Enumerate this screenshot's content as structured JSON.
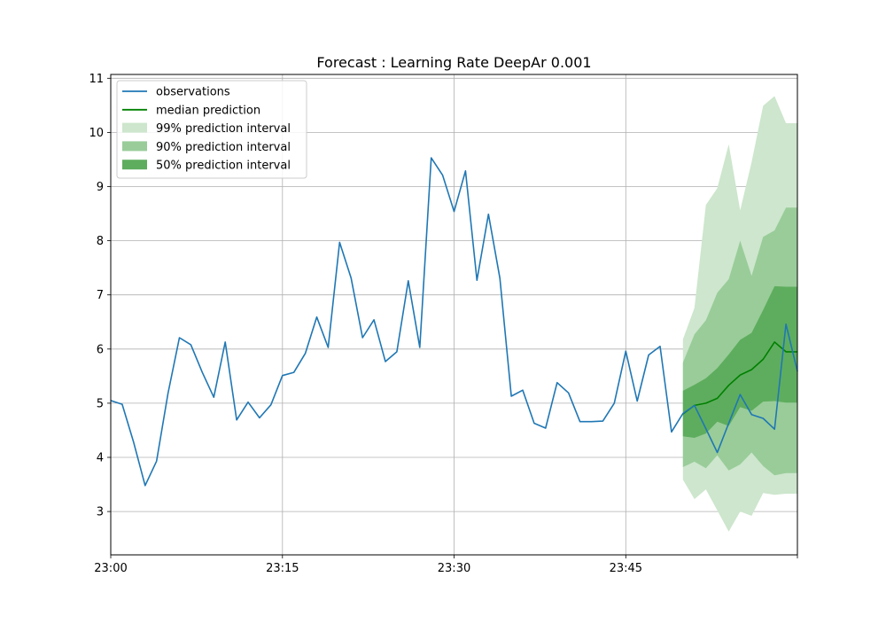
{
  "chart_data": {
    "type": "line",
    "title": "Forecast : Learning Rate DeepAr 0.001",
    "xlabel": "",
    "ylabel": "",
    "x_unit_minutes": 1,
    "xlim": [
      "23:00",
      "00:00"
    ],
    "ylim": [
      2.2,
      11.07
    ],
    "grid": true,
    "legend_position": "top-left",
    "x_ticks": [
      {
        "value": "23:00",
        "label": "23:00"
      },
      {
        "value": "23:15",
        "label": "23:15"
      },
      {
        "value": "23:30",
        "label": "23:30"
      },
      {
        "value": "23:45",
        "label": "23:45"
      },
      {
        "value": "00:00",
        "label": ""
      }
    ],
    "y_ticks": [
      3,
      4,
      5,
      6,
      7,
      8,
      9,
      10,
      11
    ],
    "legend": [
      {
        "label": "observations",
        "kind": "line",
        "color": "#1f77b4"
      },
      {
        "label": "median prediction",
        "kind": "line",
        "color": "#008000"
      },
      {
        "label": "99% prediction interval",
        "kind": "band",
        "color": "#cde6cd"
      },
      {
        "label": "90% prediction interval",
        "kind": "band",
        "color": "#99cc99"
      },
      {
        "label": "50% prediction interval",
        "kind": "band",
        "color": "#5ead5e"
      }
    ],
    "observations": {
      "name": "observations",
      "color": "#1f77b4",
      "x": [
        "23:00",
        "23:01",
        "23:02",
        "23:03",
        "23:04",
        "23:05",
        "23:06",
        "23:07",
        "23:08",
        "23:09",
        "23:10",
        "23:11",
        "23:12",
        "23:13",
        "23:14",
        "23:15",
        "23:16",
        "23:17",
        "23:18",
        "23:19",
        "23:20",
        "23:21",
        "23:22",
        "23:23",
        "23:24",
        "23:25",
        "23:26",
        "23:27",
        "23:28",
        "23:29",
        "23:30",
        "23:31",
        "23:32",
        "23:33",
        "23:34",
        "23:35",
        "23:36",
        "23:37",
        "23:38",
        "23:39",
        "23:40",
        "23:41",
        "23:42",
        "23:43",
        "23:44",
        "23:45",
        "23:46",
        "23:47",
        "23:48",
        "23:49",
        "23:50",
        "23:51",
        "23:52",
        "23:53",
        "23:54",
        "23:55",
        "23:56",
        "23:57",
        "23:58",
        "23:59",
        "00:00"
      ],
      "values": [
        5.05,
        4.98,
        4.28,
        3.48,
        3.93,
        5.18,
        6.21,
        6.08,
        5.57,
        5.11,
        6.13,
        4.69,
        5.02,
        4.73,
        4.97,
        5.51,
        5.57,
        5.92,
        6.59,
        6.03,
        7.97,
        7.31,
        6.21,
        6.54,
        5.77,
        5.95,
        7.26,
        6.03,
        9.53,
        9.21,
        8.54,
        9.29,
        7.27,
        8.49,
        7.31,
        5.13,
        5.24,
        4.63,
        4.54,
        5.38,
        5.19,
        4.66,
        4.66,
        4.67,
        5.0,
        5.96,
        5.04,
        5.89,
        6.05,
        4.47,
        4.81,
        4.96,
        4.53,
        4.09,
        4.63,
        5.16,
        4.79,
        4.72,
        4.52,
        6.46,
        5.59
      ]
    },
    "forecast": {
      "x": [
        "23:50",
        "23:51",
        "23:52",
        "23:53",
        "23:54",
        "23:55",
        "23:56",
        "23:57",
        "23:58",
        "23:59",
        "00:00"
      ],
      "median": {
        "name": "median prediction",
        "color": "#008000",
        "values": [
          4.8,
          4.96,
          5.0,
          5.09,
          5.33,
          5.52,
          5.62,
          5.81,
          6.13,
          5.95,
          5.95
        ]
      },
      "bands": [
        {
          "name": "99% prediction interval",
          "color": "#cde6cd",
          "lower": [
            3.59,
            3.23,
            3.41,
            3.02,
            2.63,
            3.0,
            2.92,
            3.34,
            3.31,
            3.33,
            3.33
          ],
          "upper": [
            6.18,
            6.76,
            8.66,
            8.97,
            9.78,
            8.56,
            9.45,
            10.49,
            10.67,
            10.17,
            10.17
          ]
        },
        {
          "name": "90% prediction interval",
          "color": "#99cc99",
          "lower": [
            3.82,
            3.92,
            3.8,
            4.04,
            3.76,
            3.87,
            4.09,
            3.84,
            3.67,
            3.71,
            3.71
          ],
          "upper": [
            5.75,
            6.27,
            6.53,
            7.04,
            7.29,
            8.0,
            7.35,
            8.07,
            8.19,
            8.61,
            8.61
          ]
        },
        {
          "name": "50% prediction interval",
          "color": "#5ead5e",
          "lower": [
            4.39,
            4.36,
            4.44,
            4.66,
            4.58,
            4.93,
            4.86,
            5.03,
            5.04,
            5.01,
            5.01
          ],
          "upper": [
            5.23,
            5.34,
            5.46,
            5.65,
            5.9,
            6.17,
            6.3,
            6.72,
            7.16,
            7.15,
            7.15
          ]
        }
      ]
    }
  }
}
